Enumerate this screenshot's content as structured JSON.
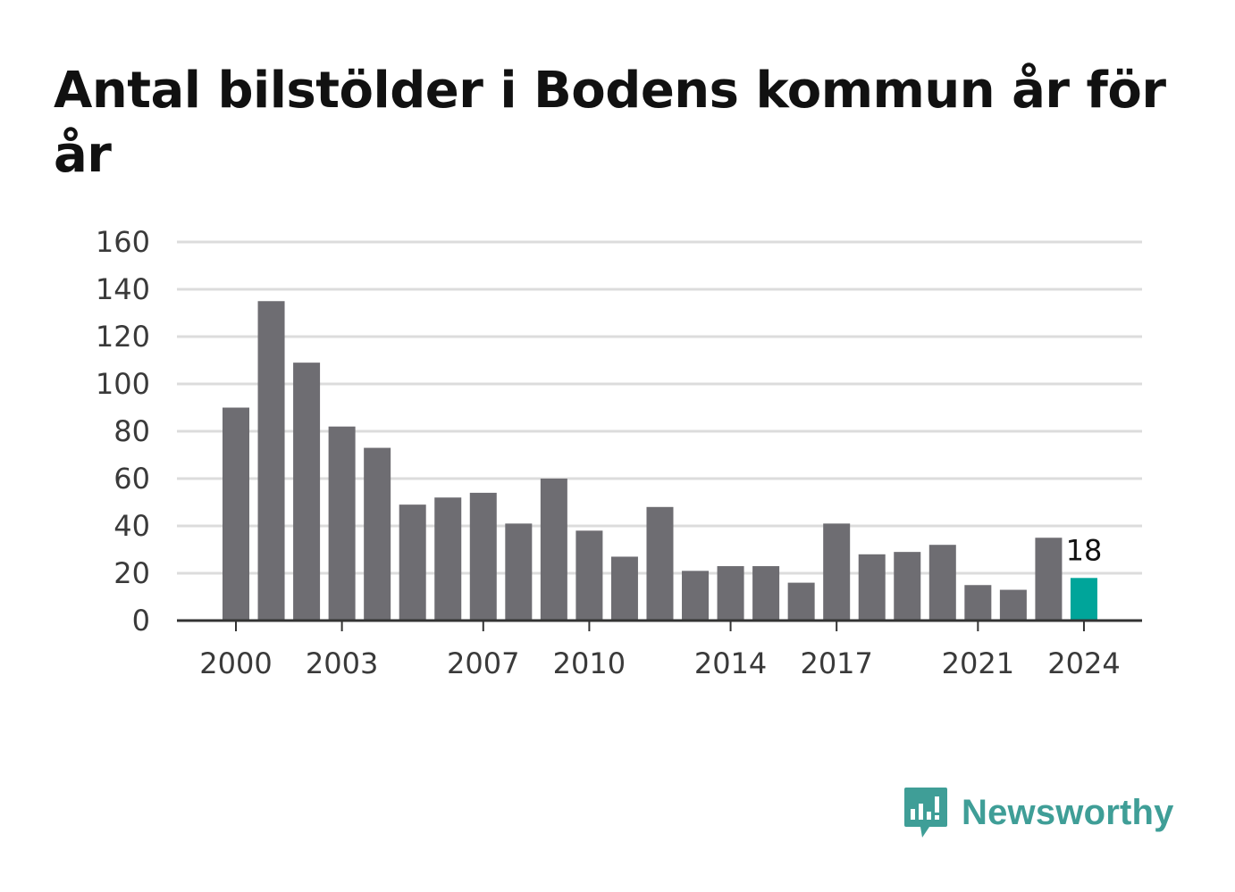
{
  "title": "Antal bilstölder i Bodens kommun år för år",
  "brand": {
    "name": "Newsworthy"
  },
  "colors": {
    "bar": "#6e6d72",
    "highlight": "#00a59a",
    "grid": "#dcdcdc",
    "axis": "#333333",
    "brand": "#3f9e97"
  },
  "chart_data": {
    "type": "bar",
    "title": "Antal bilstölder i Bodens kommun år för år",
    "xlabel": "",
    "ylabel": "",
    "ylim": [
      0,
      160
    ],
    "yticks": [
      0,
      20,
      40,
      60,
      80,
      100,
      120,
      140,
      160
    ],
    "xtick_labels": [
      "2000",
      "2003",
      "2007",
      "2010",
      "2014",
      "2017",
      "2021",
      "2024"
    ],
    "grid": true,
    "categories": [
      "2000",
      "2001",
      "2002",
      "2003",
      "2004",
      "2005",
      "2006",
      "2007",
      "2008",
      "2009",
      "2010",
      "2011",
      "2012",
      "2013",
      "2014",
      "2015",
      "2016",
      "2017",
      "2018",
      "2019",
      "2020",
      "2021",
      "2022",
      "2023",
      "2024"
    ],
    "values": [
      90,
      135,
      109,
      82,
      73,
      49,
      52,
      54,
      41,
      60,
      38,
      27,
      48,
      21,
      23,
      23,
      16,
      41,
      28,
      29,
      32,
      15,
      13,
      35,
      18
    ],
    "highlight": {
      "category": "2024",
      "label": "18"
    }
  }
}
